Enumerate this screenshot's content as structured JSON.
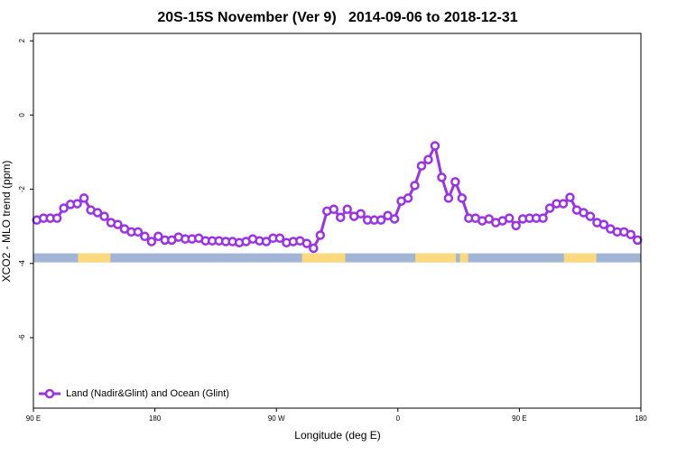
{
  "chart_data": {
    "type": "line",
    "title": "20S-15S November (Ver 9)   2014-09-06 to 2018-12-31",
    "x_label": "Longitude (deg E)",
    "y_label": "XCO2 - MLO trend (ppm)",
    "xlim": [
      90,
      540
    ],
    "ylim": [
      -7.9,
      2.2
    ],
    "xticks": [
      {
        "value": 90,
        "label": "90 E"
      },
      {
        "value": 180,
        "label": "180"
      },
      {
        "value": 270,
        "label": "90 W"
      },
      {
        "value": 360,
        "label": "0"
      },
      {
        "value": 450,
        "label": "90 E"
      },
      {
        "value": 540,
        "label": "180"
      }
    ],
    "yticks": [
      2,
      0,
      -2,
      -4,
      -6
    ],
    "legend": "bottomleft",
    "x": [
      92.5,
      97.5,
      102.5,
      107.5,
      112.5,
      117.5,
      122.5,
      127.5,
      132.5,
      137.5,
      142.5,
      147.5,
      152.5,
      157.5,
      162.5,
      167.5,
      172.5,
      177.5,
      182.5,
      187.5,
      192.5,
      197.5,
      202.5,
      207.5,
      212.5,
      217.5,
      222.5,
      227.5,
      232.5,
      237.5,
      242.5,
      247.5,
      252.5,
      257.5,
      262.5,
      267.5,
      272.5,
      277.5,
      282.5,
      287.5,
      292.5,
      297.5,
      302.5,
      307.5,
      312.5,
      317.5,
      322.5,
      327.5,
      332.5,
      337.5,
      342.5,
      347.5,
      352.5,
      357.5,
      362.5,
      367.5,
      372.5,
      377.5,
      382.5,
      387.5,
      392.5,
      397.5,
      402.5,
      407.5,
      412.5,
      417.5,
      422.5,
      427.5,
      432.5,
      437.5,
      442.5,
      447.5,
      452.5,
      457.5,
      462.5,
      467.5,
      472.5,
      477.5,
      482.5,
      487.5,
      492.5,
      497.5,
      502.5,
      507.5,
      512.5,
      517.5,
      522.5,
      527.5,
      532.5,
      537.5
    ],
    "series": [
      {
        "name": "Land (Nadir&Glint) and Ocean (Glint)",
        "color": "#9a32e6",
        "values": [
          -2.83,
          -2.78,
          -2.78,
          -2.78,
          -2.51,
          -2.41,
          -2.39,
          -2.24,
          -2.56,
          -2.63,
          -2.73,
          -2.9,
          -2.95,
          -3.07,
          -3.15,
          -3.15,
          -3.27,
          -3.41,
          -3.27,
          -3.37,
          -3.37,
          -3.29,
          -3.34,
          -3.34,
          -3.32,
          -3.39,
          -3.39,
          -3.39,
          -3.41,
          -3.41,
          -3.44,
          -3.41,
          -3.34,
          -3.39,
          -3.41,
          -3.32,
          -3.32,
          -3.44,
          -3.41,
          -3.39,
          -3.46,
          -3.59,
          -3.24,
          -2.59,
          -2.54,
          -2.76,
          -2.54,
          -2.73,
          -2.66,
          -2.83,
          -2.83,
          -2.83,
          -2.71,
          -2.8,
          -2.32,
          -2.24,
          -1.9,
          -1.37,
          -1.2,
          -0.83,
          -1.68,
          -2.24,
          -1.8,
          -2.24,
          -2.78,
          -2.78,
          -2.85,
          -2.8,
          -2.9,
          -2.85,
          -2.78,
          -2.98,
          -2.8,
          -2.78,
          -2.78,
          -2.78,
          -2.51,
          -2.39,
          -2.39,
          -2.22,
          -2.56,
          -2.63,
          -2.73,
          -2.9,
          -2.95,
          -3.07,
          -3.15,
          -3.15,
          -3.22,
          -3.37
        ]
      }
    ],
    "land_ocean_band": {
      "y": -3.85,
      "ocean_color": "#a2b5d6",
      "land_color": "#fcd97c",
      "land_spans": [
        [
          123,
          147
        ],
        [
          289,
          321
        ],
        [
          373,
          403
        ],
        [
          406,
          412
        ],
        [
          483,
          507
        ]
      ]
    }
  }
}
